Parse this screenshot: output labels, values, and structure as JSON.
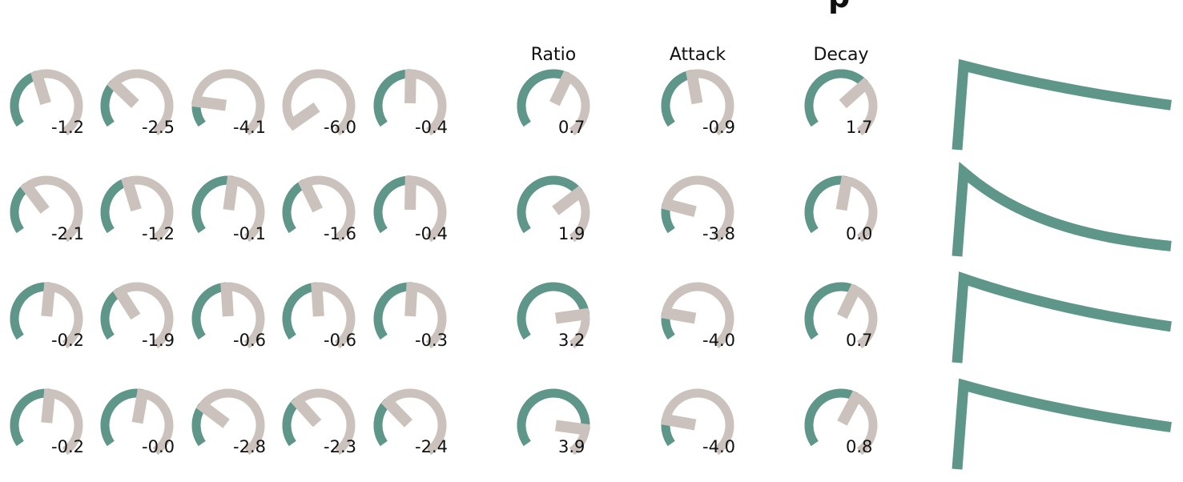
{
  "title_fragment": "p",
  "colors": {
    "accent": "#5e9689",
    "track": "#cbc2bd",
    "text": "#111111",
    "background": "#ffffff"
  },
  "column_headers": [
    "Ratio",
    "Attack",
    "Decay"
  ],
  "knob_value_range": [
    -6.0,
    6.0
  ],
  "knob_rows": [
    {
      "eq": [
        "-1.2",
        "-2.5",
        "-4.1",
        "-6.0",
        "-0.4"
      ],
      "ratio": "0.7",
      "attack": "-0.9",
      "decay": "1.7"
    },
    {
      "eq": [
        "-2.1",
        "-1.2",
        "-0.1",
        "-1.6",
        "-0.4"
      ],
      "ratio": "1.9",
      "attack": "-3.8",
      "decay": "0.0"
    },
    {
      "eq": [
        "-0.2",
        "-1.9",
        "-0.6",
        "-0.6",
        "-0.3"
      ],
      "ratio": "3.2",
      "attack": "-4.0",
      "decay": "0.7"
    },
    {
      "eq": [
        "-0.2",
        "-0.0",
        "-2.8",
        "-2.3",
        "-2.4"
      ],
      "ratio": "3.9",
      "attack": "-4.0",
      "decay": "0.8"
    }
  ],
  "envelope_tails": [
    0.53,
    0.12,
    0.43,
    0.5
  ]
}
